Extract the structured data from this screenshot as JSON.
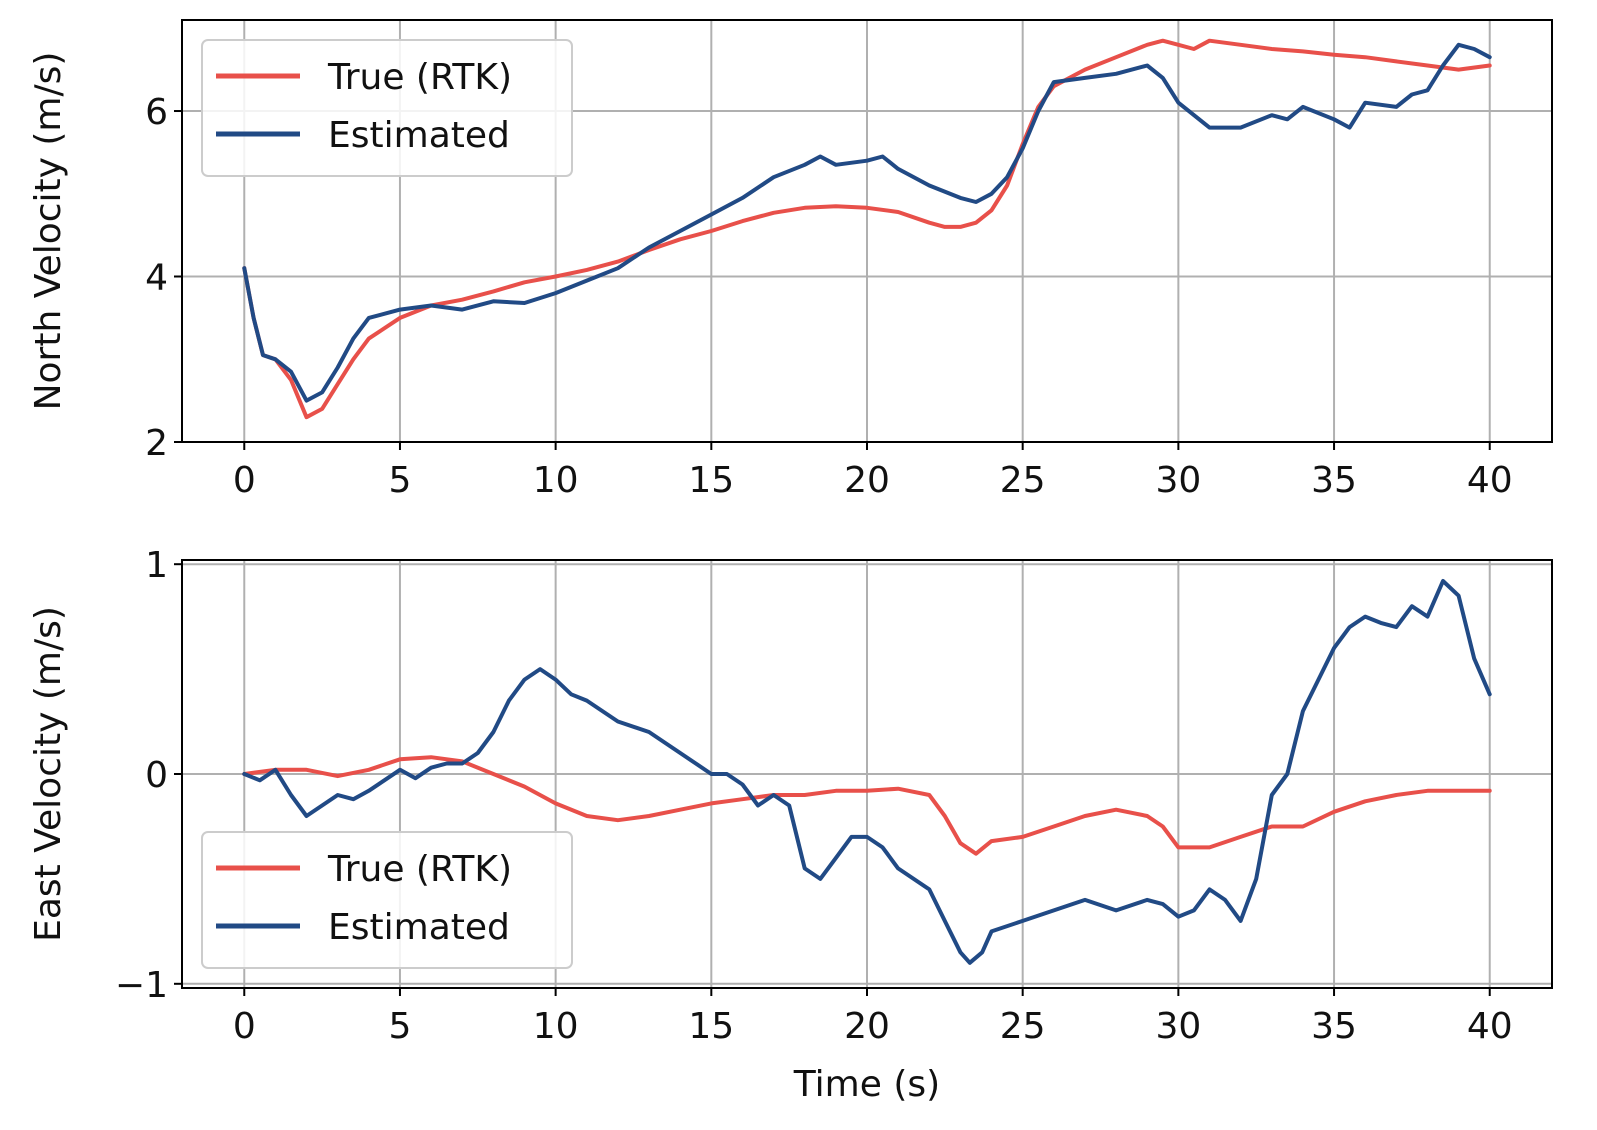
{
  "colors": {
    "true_rtk": "#e8504a",
    "estimated": "#214a85"
  },
  "chart_data": [
    {
      "type": "line",
      "ylabel": "North Velocity (m/s)",
      "xlabel": "",
      "xlim": [
        -2,
        42
      ],
      "ylim": [
        2,
        7.1
      ],
      "xticks": [
        0,
        5,
        10,
        15,
        20,
        25,
        30,
        35,
        40
      ],
      "yticks": [
        2,
        4,
        6
      ],
      "xtick_labels": [
        "0",
        "5",
        "10",
        "15",
        "20",
        "25",
        "30",
        "35",
        "40"
      ],
      "ytick_labels": [
        "2",
        "4",
        "6"
      ],
      "grid": true,
      "legend": {
        "placement": "top-left",
        "entries": [
          "True (RTK)",
          "Estimated"
        ]
      },
      "series": [
        {
          "name": "True (RTK)",
          "color_key": "true_rtk",
          "x": [
            0,
            0.3,
            0.6,
            1,
            1.5,
            2,
            2.5,
            3,
            3.5,
            4,
            5,
            6,
            7,
            8,
            9,
            10,
            11,
            12,
            13,
            14,
            15,
            16,
            17,
            18,
            19,
            20,
            21,
            22,
            22.5,
            23,
            23.5,
            24,
            24.5,
            25,
            25.5,
            26,
            27,
            28,
            29,
            29.5,
            30,
            30.5,
            31,
            32,
            33,
            34,
            35,
            36,
            37,
            38,
            39,
            40
          ],
          "y": [
            4.1,
            3.5,
            3.05,
            3.0,
            2.75,
            2.3,
            2.4,
            2.7,
            3.0,
            3.25,
            3.5,
            3.65,
            3.72,
            3.82,
            3.93,
            4.0,
            4.08,
            4.18,
            4.32,
            4.45,
            4.55,
            4.67,
            4.77,
            4.83,
            4.85,
            4.83,
            4.78,
            4.65,
            4.6,
            4.6,
            4.65,
            4.8,
            5.1,
            5.6,
            6.05,
            6.3,
            6.5,
            6.65,
            6.8,
            6.85,
            6.8,
            6.75,
            6.85,
            6.8,
            6.75,
            6.72,
            6.68,
            6.65,
            6.6,
            6.55,
            6.5,
            6.55
          ]
        },
        {
          "name": "Estimated",
          "color_key": "estimated",
          "x": [
            0,
            0.3,
            0.6,
            1,
            1.5,
            2,
            2.5,
            3,
            3.5,
            4,
            5,
            6,
            7,
            8,
            9,
            10,
            11,
            12,
            13,
            14,
            15,
            16,
            17,
            18,
            18.5,
            19,
            20,
            20.5,
            21,
            22,
            23,
            23.5,
            24,
            24.5,
            25,
            25.5,
            26,
            27,
            28,
            29,
            29.5,
            30,
            31,
            32,
            33,
            33.5,
            34,
            35,
            35.5,
            36,
            37,
            37.5,
            38,
            38.5,
            39,
            39.5,
            40
          ],
          "y": [
            4.1,
            3.5,
            3.05,
            3.0,
            2.85,
            2.5,
            2.6,
            2.9,
            3.25,
            3.5,
            3.6,
            3.65,
            3.6,
            3.7,
            3.68,
            3.8,
            3.95,
            4.1,
            4.35,
            4.55,
            4.75,
            4.95,
            5.2,
            5.35,
            5.45,
            5.35,
            5.4,
            5.45,
            5.3,
            5.1,
            4.95,
            4.9,
            5.0,
            5.2,
            5.55,
            6.0,
            6.35,
            6.4,
            6.45,
            6.55,
            6.4,
            6.1,
            5.8,
            5.8,
            5.95,
            5.9,
            6.05,
            5.9,
            5.8,
            6.1,
            6.05,
            6.2,
            6.25,
            6.55,
            6.8,
            6.75,
            6.65
          ]
        }
      ]
    },
    {
      "type": "line",
      "ylabel": "East Velocity (m/s)",
      "xlabel": "Time (s)",
      "xlim": [
        -2,
        42
      ],
      "ylim": [
        -1.02,
        1.02
      ],
      "xticks": [
        0,
        5,
        10,
        15,
        20,
        25,
        30,
        35,
        40
      ],
      "yticks": [
        -1,
        0,
        1
      ],
      "xtick_labels": [
        "0",
        "5",
        "10",
        "15",
        "20",
        "25",
        "30",
        "35",
        "40"
      ],
      "ytick_labels": [
        "−1",
        "0",
        "1"
      ],
      "grid": true,
      "legend": {
        "placement": "bottom-left",
        "entries": [
          "True (RTK)",
          "Estimated"
        ]
      },
      "series": [
        {
          "name": "True (RTK)",
          "color_key": "true_rtk",
          "x": [
            0,
            1,
            2,
            3,
            4,
            5,
            6,
            7,
            8,
            9,
            10,
            11,
            12,
            13,
            14,
            15,
            16,
            17,
            18,
            19,
            20,
            21,
            22,
            22.5,
            23,
            23.5,
            24,
            25,
            26,
            27,
            28,
            29,
            29.5,
            30,
            31,
            32,
            33,
            34,
            35,
            36,
            37,
            38,
            39,
            40
          ],
          "y": [
            0.0,
            0.02,
            0.02,
            -0.01,
            0.02,
            0.07,
            0.08,
            0.06,
            0.0,
            -0.06,
            -0.14,
            -0.2,
            -0.22,
            -0.2,
            -0.17,
            -0.14,
            -0.12,
            -0.1,
            -0.1,
            -0.08,
            -0.08,
            -0.07,
            -0.1,
            -0.2,
            -0.33,
            -0.38,
            -0.32,
            -0.3,
            -0.25,
            -0.2,
            -0.17,
            -0.2,
            -0.25,
            -0.35,
            -0.35,
            -0.3,
            -0.25,
            -0.25,
            -0.18,
            -0.13,
            -0.1,
            -0.08,
            -0.08,
            -0.08
          ]
        },
        {
          "name": "Estimated",
          "color_key": "estimated",
          "x": [
            0,
            0.5,
            1,
            1.5,
            2,
            2.5,
            3,
            3.5,
            4,
            4.5,
            5,
            5.5,
            6,
            6.5,
            7,
            7.5,
            8,
            8.5,
            9,
            9.5,
            10,
            10.5,
            11,
            12,
            13,
            14,
            14.5,
            15,
            15.5,
            16,
            16.5,
            17,
            17.5,
            18,
            18.5,
            19,
            19.5,
            20,
            20.5,
            21,
            22,
            22.5,
            23,
            23.3,
            23.7,
            24,
            25,
            26,
            27,
            28,
            29,
            29.5,
            30,
            30.5,
            31,
            31.5,
            32,
            32.5,
            33,
            33.5,
            34,
            35,
            35.5,
            36,
            36.5,
            37,
            37.5,
            38,
            38.5,
            39,
            39.5,
            40
          ],
          "y": [
            0.0,
            -0.03,
            0.02,
            -0.1,
            -0.2,
            -0.15,
            -0.1,
            -0.12,
            -0.08,
            -0.03,
            0.02,
            -0.02,
            0.03,
            0.05,
            0.05,
            0.1,
            0.2,
            0.35,
            0.45,
            0.5,
            0.45,
            0.38,
            0.35,
            0.25,
            0.2,
            0.1,
            0.05,
            0.0,
            0.0,
            -0.05,
            -0.15,
            -0.1,
            -0.15,
            -0.45,
            -0.5,
            -0.4,
            -0.3,
            -0.3,
            -0.35,
            -0.45,
            -0.55,
            -0.7,
            -0.85,
            -0.9,
            -0.85,
            -0.75,
            -0.7,
            -0.65,
            -0.6,
            -0.65,
            -0.6,
            -0.62,
            -0.68,
            -0.65,
            -0.55,
            -0.6,
            -0.7,
            -0.5,
            -0.1,
            0.0,
            0.3,
            0.6,
            0.7,
            0.75,
            0.72,
            0.7,
            0.8,
            0.75,
            0.92,
            0.85,
            0.55,
            0.38
          ]
        }
      ]
    }
  ]
}
